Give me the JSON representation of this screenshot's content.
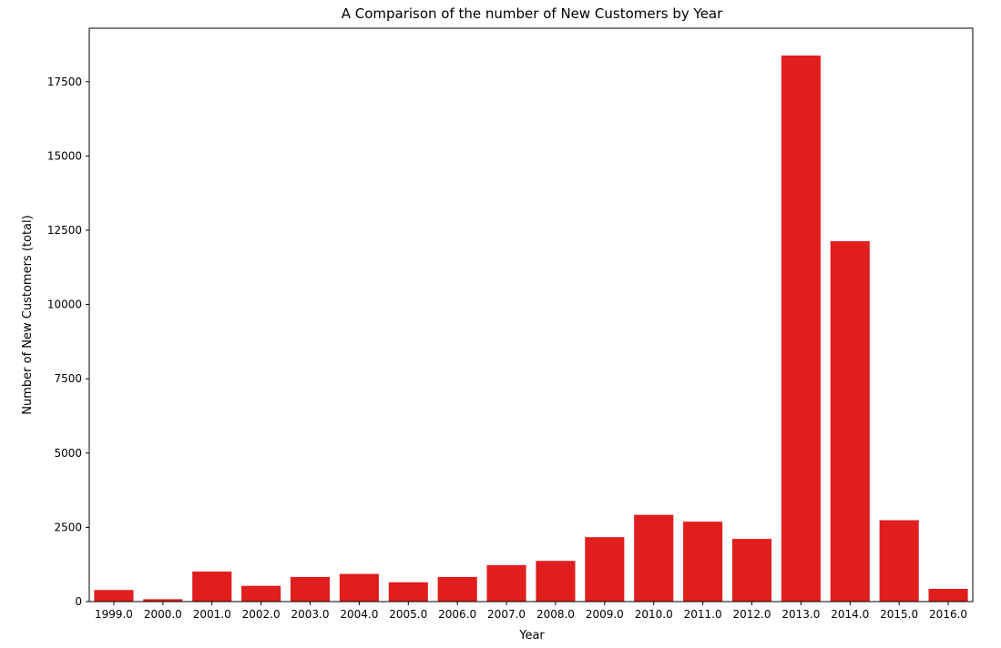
{
  "chart_data": {
    "type": "bar",
    "title": "A Comparison of the number of New Customers by Year",
    "xlabel": "Year",
    "ylabel": "Number of New Customers (total)",
    "categories": [
      "1999.0",
      "2000.0",
      "2001.0",
      "2002.0",
      "2003.0",
      "2004.0",
      "2005.0",
      "2006.0",
      "2007.0",
      "2008.0",
      "2009.0",
      "2010.0",
      "2011.0",
      "2012.0",
      "2013.0",
      "2014.0",
      "2015.0",
      "2016.0"
    ],
    "values": [
      390,
      80,
      1010,
      530,
      830,
      930,
      650,
      830,
      1230,
      1370,
      2170,
      2920,
      2690,
      2110,
      18380,
      12130,
      2740,
      430
    ],
    "ylim": [
      0,
      19300
    ],
    "yticks": [
      0,
      2500,
      5000,
      7500,
      10000,
      12500,
      15000,
      17500
    ],
    "bar_color": "#e01e1e",
    "grid": false,
    "legend": "none"
  }
}
